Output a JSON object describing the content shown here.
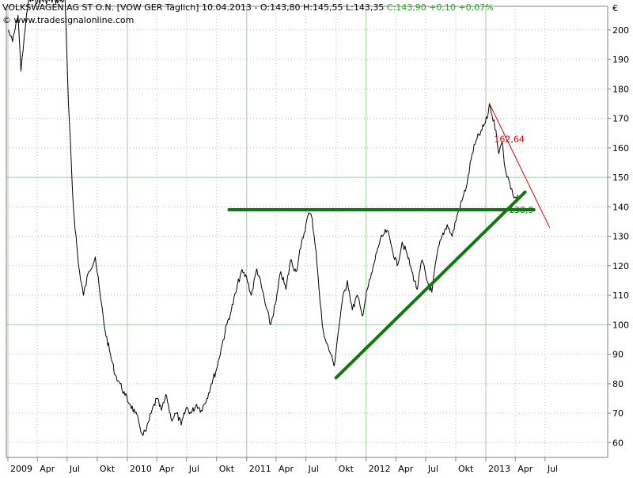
{
  "header": {
    "name": "VOLKSWAGEN AG ST O.N. [VOW GER  Täglich]",
    "ohl": "10.04.2013 - O:143,80 H:145,55 L:143,35",
    "close": "C:143,90 +0,10 +0,07%",
    "copyright": "© www.tradesignalonline.com"
  },
  "chart_data": {
    "type": "line",
    "currency_label": "€",
    "y_range": [
      55,
      208
    ],
    "y_ticks": [
      60,
      70,
      80,
      90,
      100,
      110,
      120,
      130,
      140,
      150,
      160,
      170,
      180,
      190,
      200
    ],
    "x_ticks": [
      {
        "label": "2009",
        "date": "2009-01"
      },
      {
        "label": "Apr",
        "date": "2009-04"
      },
      {
        "label": "Jul",
        "date": "2009-07"
      },
      {
        "label": "Okt",
        "date": "2009-10"
      },
      {
        "label": "2010",
        "date": "2010-01"
      },
      {
        "label": "Apr",
        "date": "2010-04"
      },
      {
        "label": "Jul",
        "date": "2010-07"
      },
      {
        "label": "Okt",
        "date": "2010-10"
      },
      {
        "label": "2011",
        "date": "2011-01"
      },
      {
        "label": "Apr",
        "date": "2011-04"
      },
      {
        "label": "Jul",
        "date": "2011-07"
      },
      {
        "label": "Okt",
        "date": "2011-10"
      },
      {
        "label": "2012",
        "date": "2012-01"
      },
      {
        "label": "Apr",
        "date": "2012-04"
      },
      {
        "label": "Jul",
        "date": "2012-07"
      },
      {
        "label": "Okt",
        "date": "2012-10"
      },
      {
        "label": "2013",
        "date": "2013-01"
      },
      {
        "label": "Apr",
        "date": "2013-04"
      },
      {
        "label": "Jul",
        "date": "2013-07"
      }
    ],
    "vertical_gridlines_at": [
      "2009-01",
      "2010-01",
      "2011-01",
      "2012-01",
      "2013-01"
    ],
    "horizontal_gridlines_at": [
      100,
      150
    ],
    "series": [
      {
        "color": "#000000",
        "points": [
          [
            "2009-01-02",
            200
          ],
          [
            "2009-01-15",
            196
          ],
          [
            "2009-02-01",
            205
          ],
          [
            "2009-02-10",
            186
          ],
          [
            "2009-02-20",
            198
          ],
          [
            "2009-03-05",
            210
          ],
          [
            "2009-06-25",
            210
          ],
          [
            "2009-07-05",
            175
          ],
          [
            "2009-07-20",
            140
          ],
          [
            "2009-08-05",
            120
          ],
          [
            "2009-08-20",
            110
          ],
          [
            "2009-09-05",
            118
          ],
          [
            "2009-09-25",
            123
          ],
          [
            "2009-10-10",
            110
          ],
          [
            "2009-10-25",
            98
          ],
          [
            "2009-11-10",
            90
          ],
          [
            "2009-11-25",
            83
          ],
          [
            "2009-12-10",
            80
          ],
          [
            "2009-12-25",
            76
          ],
          [
            "2010-01-10",
            73
          ],
          [
            "2010-01-25",
            70
          ],
          [
            "2010-02-05",
            67
          ],
          [
            "2010-02-15",
            63
          ],
          [
            "2010-02-28",
            64
          ],
          [
            "2010-03-15",
            70
          ],
          [
            "2010-04-01",
            75
          ],
          [
            "2010-04-15",
            71
          ],
          [
            "2010-05-01",
            76
          ],
          [
            "2010-05-15",
            68
          ],
          [
            "2010-06-01",
            70
          ],
          [
            "2010-06-15",
            66
          ],
          [
            "2010-07-01",
            72
          ],
          [
            "2010-07-15",
            70
          ],
          [
            "2010-08-01",
            73
          ],
          [
            "2010-08-15",
            71
          ],
          [
            "2010-09-01",
            75
          ],
          [
            "2010-09-15",
            80
          ],
          [
            "2010-10-01",
            85
          ],
          [
            "2010-10-15",
            92
          ],
          [
            "2010-11-01",
            100
          ],
          [
            "2010-11-15",
            105
          ],
          [
            "2010-12-01",
            112
          ],
          [
            "2010-12-15",
            118
          ],
          [
            "2011-01-01",
            116
          ],
          [
            "2011-01-15",
            110
          ],
          [
            "2011-02-01",
            119
          ],
          [
            "2011-02-15",
            113
          ],
          [
            "2011-03-01",
            106
          ],
          [
            "2011-03-15",
            100
          ],
          [
            "2011-04-01",
            108
          ],
          [
            "2011-04-15",
            118
          ],
          [
            "2011-05-01",
            112
          ],
          [
            "2011-05-15",
            122
          ],
          [
            "2011-06-01",
            118
          ],
          [
            "2011-06-15",
            126
          ],
          [
            "2011-07-01",
            134
          ],
          [
            "2011-07-10",
            138
          ],
          [
            "2011-07-20",
            136
          ],
          [
            "2011-08-01",
            125
          ],
          [
            "2011-08-10",
            112
          ],
          [
            "2011-08-20",
            100
          ],
          [
            "2011-09-01",
            94
          ],
          [
            "2011-09-15",
            90
          ],
          [
            "2011-09-25",
            86
          ],
          [
            "2011-10-05",
            95
          ],
          [
            "2011-10-20",
            108
          ],
          [
            "2011-11-05",
            115
          ],
          [
            "2011-11-20",
            105
          ],
          [
            "2011-12-05",
            110
          ],
          [
            "2011-12-20",
            103
          ],
          [
            "2012-01-05",
            112
          ],
          [
            "2012-01-20",
            118
          ],
          [
            "2012-02-05",
            126
          ],
          [
            "2012-02-20",
            130
          ],
          [
            "2012-03-05",
            132
          ],
          [
            "2012-03-20",
            126
          ],
          [
            "2012-04-05",
            120
          ],
          [
            "2012-04-20",
            128
          ],
          [
            "2012-05-05",
            124
          ],
          [
            "2012-05-20",
            118
          ],
          [
            "2012-06-05",
            112
          ],
          [
            "2012-06-20",
            122
          ],
          [
            "2012-07-05",
            115
          ],
          [
            "2012-07-20",
            111
          ],
          [
            "2012-08-05",
            124
          ],
          [
            "2012-08-20",
            130
          ],
          [
            "2012-09-05",
            134
          ],
          [
            "2012-09-20",
            130
          ],
          [
            "2012-10-05",
            137
          ],
          [
            "2012-10-20",
            142
          ],
          [
            "2012-11-05",
            148
          ],
          [
            "2012-11-20",
            158
          ],
          [
            "2012-12-05",
            163
          ],
          [
            "2012-12-20",
            166
          ],
          [
            "2013-01-05",
            170
          ],
          [
            "2013-01-12",
            175
          ],
          [
            "2013-01-20",
            171
          ],
          [
            "2013-02-01",
            166
          ],
          [
            "2013-02-10",
            158
          ],
          [
            "2013-02-20",
            162
          ],
          [
            "2013-03-01",
            153
          ],
          [
            "2013-03-15",
            148
          ],
          [
            "2013-03-25",
            144
          ],
          [
            "2013-04-05",
            143
          ],
          [
            "2013-04-10",
            144
          ]
        ]
      }
    ],
    "annotations": [
      {
        "kind": "line",
        "color": "#117711",
        "label": "",
        "from": [
          "2010-11-08",
          139
        ],
        "to": [
          "2013-05-28",
          139
        ]
      },
      {
        "kind": "line",
        "color": "#117711",
        "label": "",
        "from": [
          "2011-10-01",
          82
        ],
        "to": [
          "2013-05-01",
          145
        ]
      },
      {
        "kind": "line",
        "color": "#dd0000",
        "label": "",
        "from": [
          "2013-01-12",
          175
        ],
        "to": [
          "2013-07-15",
          133
        ]
      },
      {
        "kind": "text",
        "color": "#dd0000",
        "label": "162,64",
        "at": [
          "2013-01-26",
          163
        ]
      },
      {
        "kind": "text",
        "color": "#117711",
        "label": "138,9",
        "at": [
          "2013-03-12",
          139
        ]
      }
    ]
  }
}
